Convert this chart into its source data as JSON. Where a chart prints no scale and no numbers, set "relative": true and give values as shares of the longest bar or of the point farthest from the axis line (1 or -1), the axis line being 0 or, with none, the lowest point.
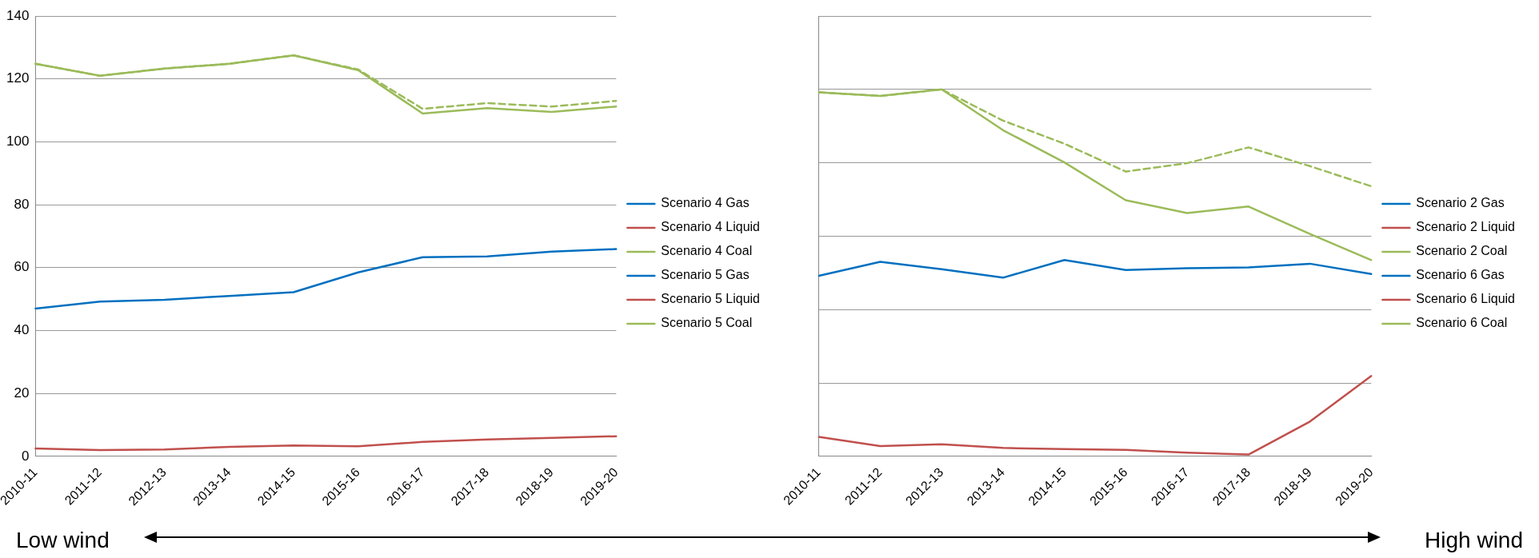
{
  "chart_data": [
    {
      "type": "line",
      "categories": [
        "2010-11",
        "2011-12",
        "2012-13",
        "2013-14",
        "2014-15",
        "2015-16",
        "2016-17",
        "2017-18",
        "2018-19",
        "2019-20"
      ],
      "ylim": [
        0,
        140
      ],
      "yticks": [
        0,
        20,
        40,
        60,
        80,
        100,
        120,
        140
      ],
      "grid": "y",
      "legend": "right",
      "marker": "none",
      "annotations": [
        "Low wind"
      ],
      "series": [
        {
          "name": "Scenario 4 Gas",
          "color": "#0070c0",
          "line_style": "solid",
          "values": [
            47,
            49.2,
            49.8,
            51,
            52.2,
            58.5,
            63.3,
            63.6,
            65.1,
            65.9
          ]
        },
        {
          "name": "Scenario 4 Liquid",
          "color": "#c0504d",
          "line_style": "solid",
          "values": [
            2.5,
            2,
            2.2,
            3,
            3.5,
            3.2,
            4.6,
            5.4,
            5.9,
            6.4
          ]
        },
        {
          "name": "Scenario 4 Coal",
          "color": "#9bbb59",
          "line_style": "solid",
          "values": [
            124.8,
            121,
            123.3,
            124.8,
            127.5,
            122.8,
            109,
            110.7,
            109.5,
            111.2
          ]
        },
        {
          "name": "Scenario 5 Gas",
          "color": "#0070c0",
          "line_style": "dashed",
          "values": [
            null,
            null,
            null,
            null,
            null,
            null,
            null,
            null,
            null,
            null
          ]
        },
        {
          "name": "Scenario 5 Liquid",
          "color": "#c0504d",
          "line_style": "dashed",
          "values": [
            null,
            null,
            null,
            null,
            null,
            null,
            null,
            null,
            null,
            null
          ]
        },
        {
          "name": "Scenario 5 Coal",
          "color": "#9bbb59",
          "line_style": "dashed",
          "values": [
            124.8,
            121,
            123.3,
            124.8,
            127.5,
            123,
            110.5,
            112.3,
            111.2,
            113
          ]
        }
      ]
    },
    {
      "type": "line",
      "relative": true,
      "categories": [
        "2010-11",
        "2011-12",
        "2012-13",
        "2013-14",
        "2014-15",
        "2015-16",
        "2016-17",
        "2017-18",
        "2018-19",
        "2019-20"
      ],
      "grid": "y",
      "legend": "right",
      "marker": "none",
      "tick_labels": "x",
      "annotations": [
        "High wind"
      ],
      "series": [
        {
          "name": "Scenario 2 Gas",
          "color": "#0070c0",
          "line_style": "solid",
          "values": [
            0.492,
            0.53,
            0.51,
            0.487,
            0.535,
            0.508,
            0.513,
            0.515,
            0.525,
            0.497
          ]
        },
        {
          "name": "Scenario 2 Liquid",
          "color": "#c0504d",
          "line_style": "solid",
          "values": [
            0.053,
            0.028,
            0.033,
            0.023,
            0.02,
            0.018,
            0.01,
            0.005,
            0.095,
            0.219
          ]
        },
        {
          "name": "Scenario 2 Coal",
          "color": "#9bbb59",
          "line_style": "solid",
          "values": [
            0.992,
            0.982,
            1,
            0.889,
            0.801,
            0.698,
            0.663,
            0.681,
            0.606,
            0.535
          ]
        },
        {
          "name": "Scenario 6 Gas",
          "color": "#0070c0",
          "line_style": "dashed",
          "values": [
            null,
            null,
            null,
            null,
            null,
            null,
            null,
            null,
            null,
            null
          ]
        },
        {
          "name": "Scenario 6 Liquid",
          "color": "#c0504d",
          "line_style": "dashed",
          "values": [
            null,
            null,
            null,
            null,
            null,
            null,
            null,
            null,
            null,
            null
          ]
        },
        {
          "name": "Scenario 6 Coal",
          "color": "#9bbb59",
          "line_style": "dashed",
          "values": [
            0.992,
            0.982,
            1,
            0.915,
            0.852,
            0.776,
            0.799,
            0.842,
            0.791,
            0.736
          ]
        }
      ]
    }
  ]
}
